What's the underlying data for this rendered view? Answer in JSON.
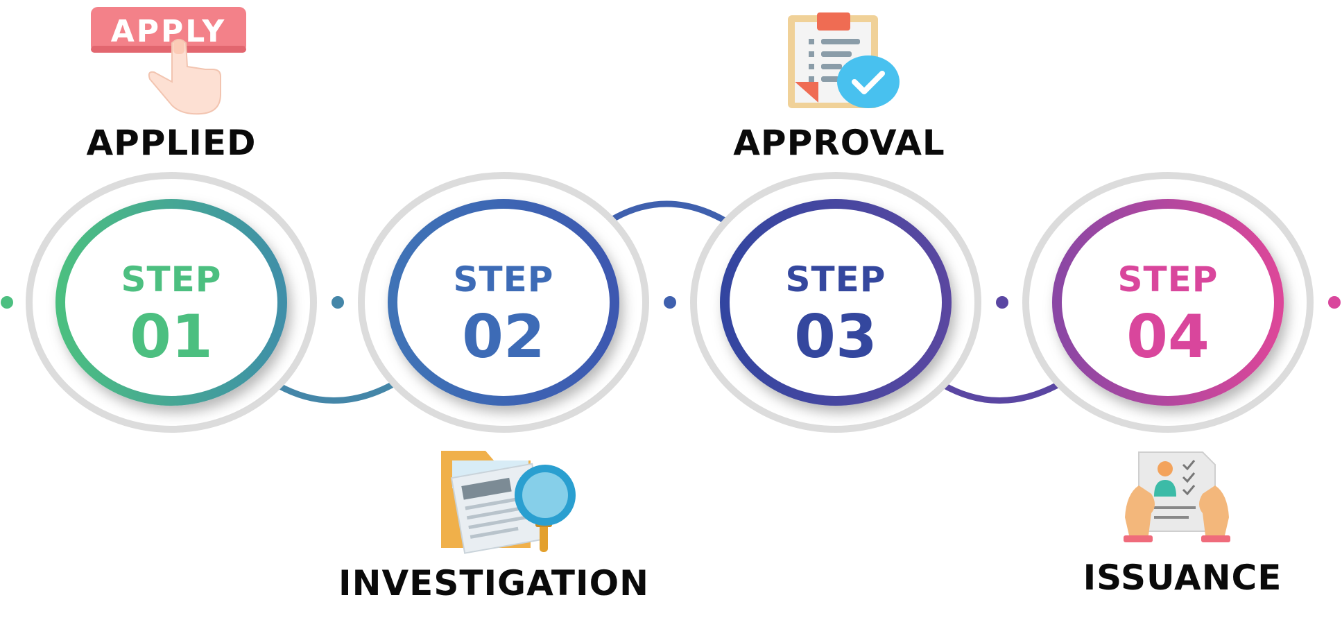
{
  "steps": [
    {
      "word": "STEP",
      "number": "01",
      "label": "APPLIED",
      "icon": "apply-click-icon",
      "color": "#4cbf80"
    },
    {
      "word": "STEP",
      "number": "02",
      "label": "INVESTIGATION",
      "icon": "magnifier-document-icon",
      "color": "#3d6bb6"
    },
    {
      "word": "STEP",
      "number": "03",
      "label": "APPROVAL",
      "icon": "approved-clipboard-icon",
      "color": "#34479e"
    },
    {
      "word": "STEP",
      "number": "04",
      "label": "ISSUANCE",
      "icon": "id-certificate-icon",
      "color": "#d9469c"
    }
  ],
  "apply_button_text": "APPLY",
  "colors": {
    "ring_gray": "#dcdcdc",
    "connector_1_2": "#4486a8",
    "connector_2_3": "#3f60ae",
    "connector_3_4": "#5a46a2"
  }
}
